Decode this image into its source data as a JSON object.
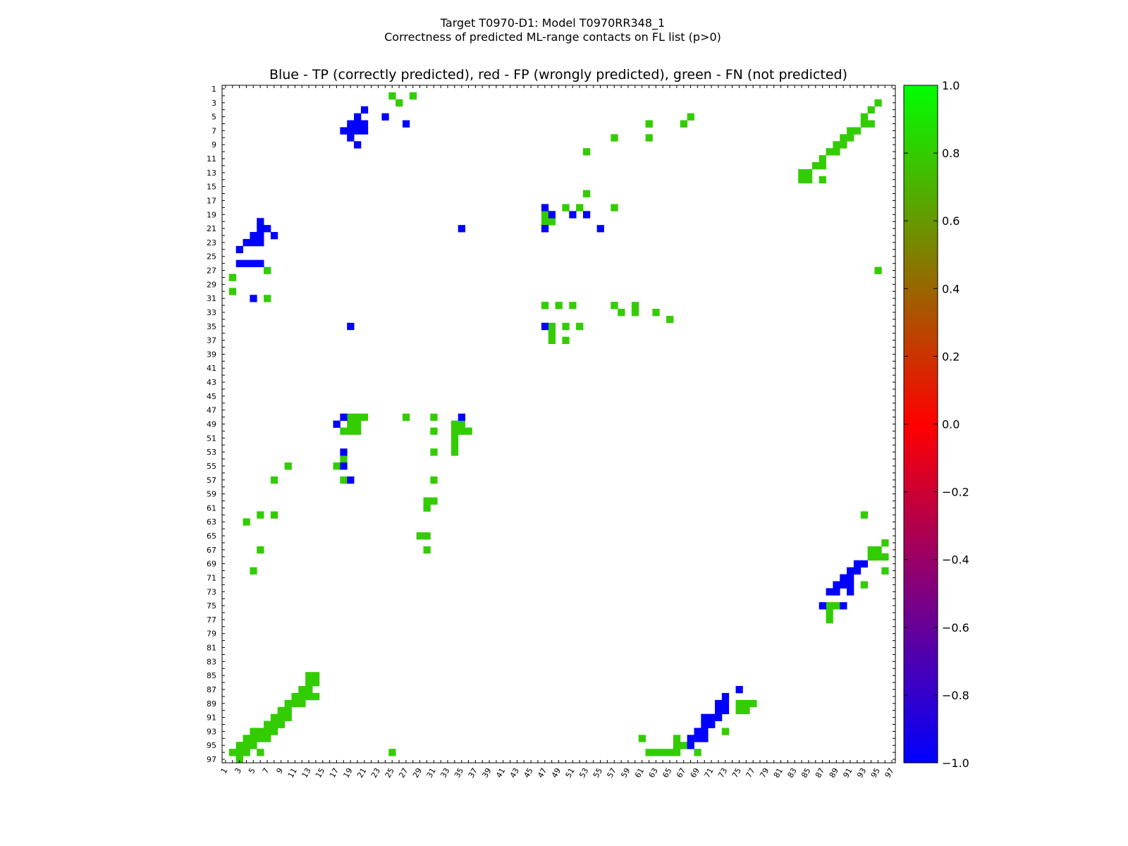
{
  "chart_data": {
    "type": "heatmap",
    "suptitle": "Target T0970-D1: Model T0970RR348_1",
    "subtitle": "Correctness of predicted ML-range contacts on FL list (p>0)",
    "title": "Blue - TP (correctly predicted), red - FP (wrongly predicted), green - FN (not predicted)",
    "xlabel": "",
    "ylabel": "",
    "xlim": [
      1,
      97
    ],
    "ylim": [
      1,
      97
    ],
    "y_inverted": true,
    "tick_labels": [
      "1",
      "3",
      "5",
      "7",
      "9",
      "11",
      "13",
      "15",
      "17",
      "19",
      "21",
      "23",
      "25",
      "27",
      "29",
      "31",
      "33",
      "35",
      "37",
      "39",
      "41",
      "43",
      "45",
      "47",
      "49",
      "51",
      "53",
      "55",
      "57",
      "59",
      "61",
      "63",
      "65",
      "67",
      "69",
      "71",
      "73",
      "75",
      "77",
      "79",
      "81",
      "83",
      "85",
      "87",
      "89",
      "91",
      "93",
      "95",
      "97"
    ],
    "colorbar": {
      "range": [
        -1.0,
        1.0
      ],
      "ticks": [
        "1.0",
        "0.8",
        "0.6",
        "0.4",
        "0.2",
        "0.0",
        "−0.2",
        "−0.4",
        "−0.6",
        "−0.8",
        "−1.0"
      ],
      "tick_values": [
        1.0,
        0.8,
        0.6,
        0.4,
        0.2,
        0.0,
        -0.2,
        -0.4,
        -0.6,
        -0.8,
        -1.0
      ],
      "gradient_colors": [
        "#00ff00",
        "#ff0000",
        "#0000ff"
      ]
    },
    "categories": {
      "TP": {
        "value": -1,
        "color": "#0000ff"
      },
      "FP": {
        "value": 0,
        "color": "#ff0000"
      },
      "FN": {
        "value": 0.8,
        "color": "#33cc00"
      }
    },
    "cells": {
      "FN": [
        [
          2,
          25
        ],
        [
          2,
          28
        ],
        [
          3,
          26
        ],
        [
          3,
          95
        ],
        [
          4,
          94
        ],
        [
          5,
          93
        ],
        [
          5,
          68
        ],
        [
          6,
          62
        ],
        [
          6,
          67
        ],
        [
          6,
          62
        ],
        [
          6,
          93
        ],
        [
          6,
          94
        ],
        [
          7,
          91
        ],
        [
          7,
          92
        ],
        [
          8,
          57
        ],
        [
          8,
          62
        ],
        [
          8,
          90
        ],
        [
          8,
          91
        ],
        [
          9,
          89
        ],
        [
          9,
          90
        ],
        [
          10,
          53
        ],
        [
          10,
          88
        ],
        [
          10,
          89
        ],
        [
          11,
          87
        ],
        [
          12,
          86
        ],
        [
          12,
          87
        ],
        [
          13,
          84
        ],
        [
          13,
          85
        ],
        [
          14,
          84
        ],
        [
          14,
          85
        ],
        [
          14,
          87
        ],
        [
          16,
          53
        ],
        [
          18,
          50
        ],
        [
          18,
          52
        ],
        [
          18,
          57
        ],
        [
          19,
          47
        ],
        [
          19,
          48
        ],
        [
          20,
          47
        ],
        [
          20,
          48
        ],
        [
          21,
          47
        ],
        [
          27,
          7
        ],
        [
          27,
          95
        ],
        [
          28,
          2
        ],
        [
          30,
          2
        ],
        [
          31,
          7
        ],
        [
          32,
          47
        ],
        [
          32,
          49
        ],
        [
          32,
          51
        ],
        [
          32,
          57
        ],
        [
          32,
          60
        ],
        [
          33,
          58
        ],
        [
          33,
          60
        ],
        [
          33,
          63
        ],
        [
          34,
          65
        ],
        [
          35,
          47
        ],
        [
          35,
          48
        ],
        [
          35,
          50
        ],
        [
          35,
          52
        ],
        [
          36,
          48
        ],
        [
          37,
          48
        ],
        [
          37,
          50
        ],
        [
          48,
          19
        ],
        [
          48,
          20
        ],
        [
          48,
          21
        ],
        [
          48,
          27
        ],
        [
          48,
          31
        ],
        [
          49,
          34
        ],
        [
          49,
          35
        ],
        [
          49,
          19
        ],
        [
          49,
          20
        ],
        [
          50,
          18
        ],
        [
          50,
          19
        ],
        [
          50,
          20
        ],
        [
          50,
          31
        ],
        [
          50,
          34
        ],
        [
          50,
          35
        ],
        [
          50,
          36
        ],
        [
          51,
          34
        ],
        [
          52,
          34
        ],
        [
          53,
          31
        ],
        [
          53,
          34
        ],
        [
          54,
          18
        ],
        [
          55,
          10
        ],
        [
          55,
          17
        ],
        [
          57,
          8
        ],
        [
          57,
          18
        ],
        [
          57,
          31
        ],
        [
          60,
          30
        ],
        [
          60,
          31
        ],
        [
          61,
          30
        ],
        [
          62,
          6
        ],
        [
          62,
          8
        ],
        [
          62,
          93
        ],
        [
          63,
          4
        ],
        [
          65,
          29
        ],
        [
          65,
          30
        ],
        [
          66,
          96
        ],
        [
          67,
          6
        ],
        [
          67,
          30
        ],
        [
          67,
          94
        ],
        [
          67,
          95
        ],
        [
          68,
          94
        ],
        [
          68,
          95
        ],
        [
          68,
          96
        ],
        [
          70,
          5
        ],
        [
          70,
          96
        ],
        [
          72,
          93
        ],
        [
          75,
          88
        ],
        [
          75,
          89
        ],
        [
          76,
          88
        ],
        [
          77,
          88
        ],
        [
          85,
          13
        ],
        [
          85,
          14
        ],
        [
          86,
          13
        ],
        [
          86,
          14
        ],
        [
          87,
          12
        ],
        [
          87,
          13
        ],
        [
          88,
          11
        ],
        [
          88,
          12
        ],
        [
          88,
          13
        ],
        [
          88,
          14
        ],
        [
          89,
          10
        ],
        [
          89,
          11
        ],
        [
          89,
          12
        ],
        [
          89,
          75
        ],
        [
          89,
          76
        ],
        [
          89,
          77
        ],
        [
          90,
          9
        ],
        [
          90,
          10
        ],
        [
          90,
          75
        ],
        [
          90,
          76
        ],
        [
          91,
          8
        ],
        [
          91,
          9
        ],
        [
          91,
          10
        ],
        [
          92,
          7
        ],
        [
          92,
          8
        ],
        [
          92,
          9
        ],
        [
          93,
          5
        ],
        [
          93,
          6
        ],
        [
          93,
          7
        ],
        [
          93,
          8
        ],
        [
          93,
          73
        ],
        [
          94,
          4
        ],
        [
          94,
          5
        ],
        [
          94,
          6
        ],
        [
          94,
          7
        ],
        [
          94,
          61
        ],
        [
          94,
          66
        ],
        [
          95,
          3
        ],
        [
          95,
          4
        ],
        [
          95,
          5
        ],
        [
          95,
          66
        ],
        [
          95,
          67
        ],
        [
          96,
          2
        ],
        [
          96,
          3
        ],
        [
          96,
          4
        ],
        [
          96,
          6
        ],
        [
          96,
          66
        ],
        [
          96,
          69
        ],
        [
          97,
          3
        ],
        [
          96,
          25
        ],
        [
          96,
          62
        ],
        [
          96,
          63
        ],
        [
          96,
          64
        ],
        [
          96,
          65
        ]
      ],
      "TP": [
        [
          4,
          21
        ],
        [
          5,
          20
        ],
        [
          5,
          24
        ],
        [
          6,
          19
        ],
        [
          6,
          20
        ],
        [
          6,
          21
        ],
        [
          6,
          27
        ],
        [
          7,
          18
        ],
        [
          7,
          19
        ],
        [
          7,
          20
        ],
        [
          7,
          21
        ],
        [
          8,
          19
        ],
        [
          9,
          20
        ],
        [
          18,
          47
        ],
        [
          19,
          48
        ],
        [
          19,
          51
        ],
        [
          19,
          53
        ],
        [
          20,
          6
        ],
        [
          21,
          6
        ],
        [
          21,
          7
        ],
        [
          21,
          35
        ],
        [
          21,
          47
        ],
        [
          21,
          55
        ],
        [
          22,
          5
        ],
        [
          22,
          6
        ],
        [
          22,
          8
        ],
        [
          23,
          4
        ],
        [
          23,
          5
        ],
        [
          23,
          6
        ],
        [
          24,
          3
        ],
        [
          26,
          3
        ],
        [
          26,
          4
        ],
        [
          26,
          5
        ],
        [
          26,
          6
        ],
        [
          31,
          5
        ],
        [
          35,
          19
        ],
        [
          35,
          47
        ],
        [
          48,
          18
        ],
        [
          48,
          35
        ],
        [
          49,
          17
        ],
        [
          53,
          18
        ],
        [
          55,
          18
        ],
        [
          57,
          19
        ],
        [
          69,
          92
        ],
        [
          69,
          93
        ],
        [
          70,
          91
        ],
        [
          70,
          92
        ],
        [
          71,
          90
        ],
        [
          71,
          91
        ],
        [
          72,
          89
        ],
        [
          72,
          90
        ],
        [
          72,
          91
        ],
        [
          73,
          88
        ],
        [
          73,
          89
        ],
        [
          73,
          91
        ],
        [
          75,
          87
        ],
        [
          75,
          90
        ],
        [
          87,
          75
        ],
        [
          88,
          73
        ],
        [
          89,
          72
        ],
        [
          89,
          73
        ],
        [
          90,
          72
        ],
        [
          90,
          73
        ],
        [
          91,
          70
        ],
        [
          91,
          71
        ],
        [
          91,
          72
        ],
        [
          92,
          70
        ],
        [
          92,
          71
        ],
        [
          93,
          69
        ],
        [
          93,
          70
        ],
        [
          94,
          68
        ],
        [
          94,
          69
        ],
        [
          94,
          70
        ],
        [
          95,
          68
        ]
      ]
    }
  }
}
